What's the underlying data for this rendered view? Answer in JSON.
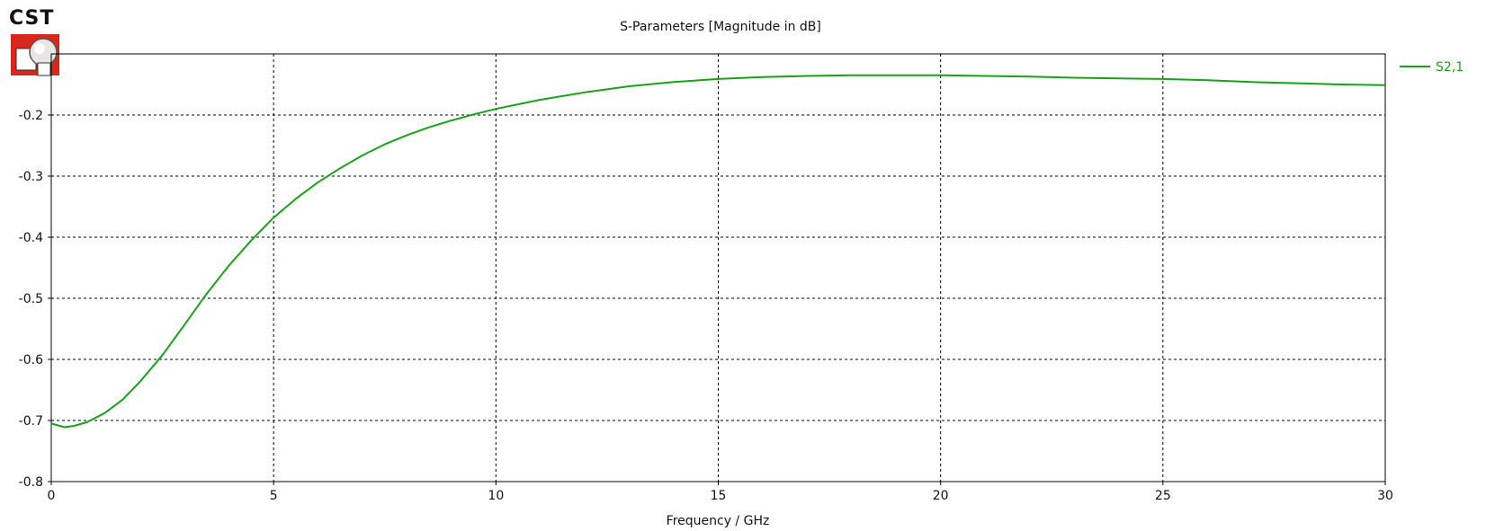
{
  "logo": {
    "text": "CST",
    "accent_color": "#d9271d"
  },
  "chart_data": {
    "type": "line",
    "title": "S-Parameters [Magnitude in dB]",
    "xlabel": "Frequency / GHz",
    "ylabel": "",
    "xlim": [
      0,
      30
    ],
    "ylim": [
      -0.8,
      -0.1
    ],
    "xticks": [
      0,
      5,
      10,
      15,
      20,
      25,
      30
    ],
    "xtick_labels": [
      "0",
      "5",
      "10",
      "15",
      "20",
      "25",
      "30"
    ],
    "yticks": [
      -0.8,
      -0.7,
      -0.6,
      -0.5,
      -0.4,
      -0.3,
      -0.2
    ],
    "ytick_labels": [
      "-0.8",
      "-0.7",
      "-0.6",
      "-0.5",
      "-0.4",
      "-0.3",
      "-0.2"
    ],
    "grid": true,
    "legend_position": "top-right",
    "series": [
      {
        "name": "S2,1",
        "color": "#1aa11a",
        "x": [
          0,
          0.3,
          0.5,
          0.8,
          1.2,
          1.6,
          2.0,
          2.5,
          3.0,
          3.5,
          4.0,
          4.5,
          5.0,
          5.5,
          6.0,
          6.5,
          7.0,
          7.5,
          8.0,
          8.5,
          9.0,
          9.5,
          10.0,
          11.0,
          12.0,
          13.0,
          14.0,
          15.0,
          16.0,
          17.0,
          18.0,
          19.0,
          20.0,
          21.0,
          22.0,
          23.0,
          24.0,
          25.0,
          26.0,
          27.0,
          28.0,
          29.0,
          30.0
        ],
        "y": [
          -0.705,
          -0.711,
          -0.709,
          -0.703,
          -0.688,
          -0.666,
          -0.636,
          -0.593,
          -0.543,
          -0.492,
          -0.446,
          -0.405,
          -0.368,
          -0.337,
          -0.31,
          -0.287,
          -0.266,
          -0.248,
          -0.233,
          -0.22,
          -0.209,
          -0.199,
          -0.19,
          -0.175,
          -0.163,
          -0.153,
          -0.146,
          -0.141,
          -0.138,
          -0.136,
          -0.135,
          -0.135,
          -0.135,
          -0.136,
          -0.137,
          -0.139,
          -0.14,
          -0.141,
          -0.143,
          -0.146,
          -0.148,
          -0.15,
          -0.151
        ]
      }
    ]
  }
}
